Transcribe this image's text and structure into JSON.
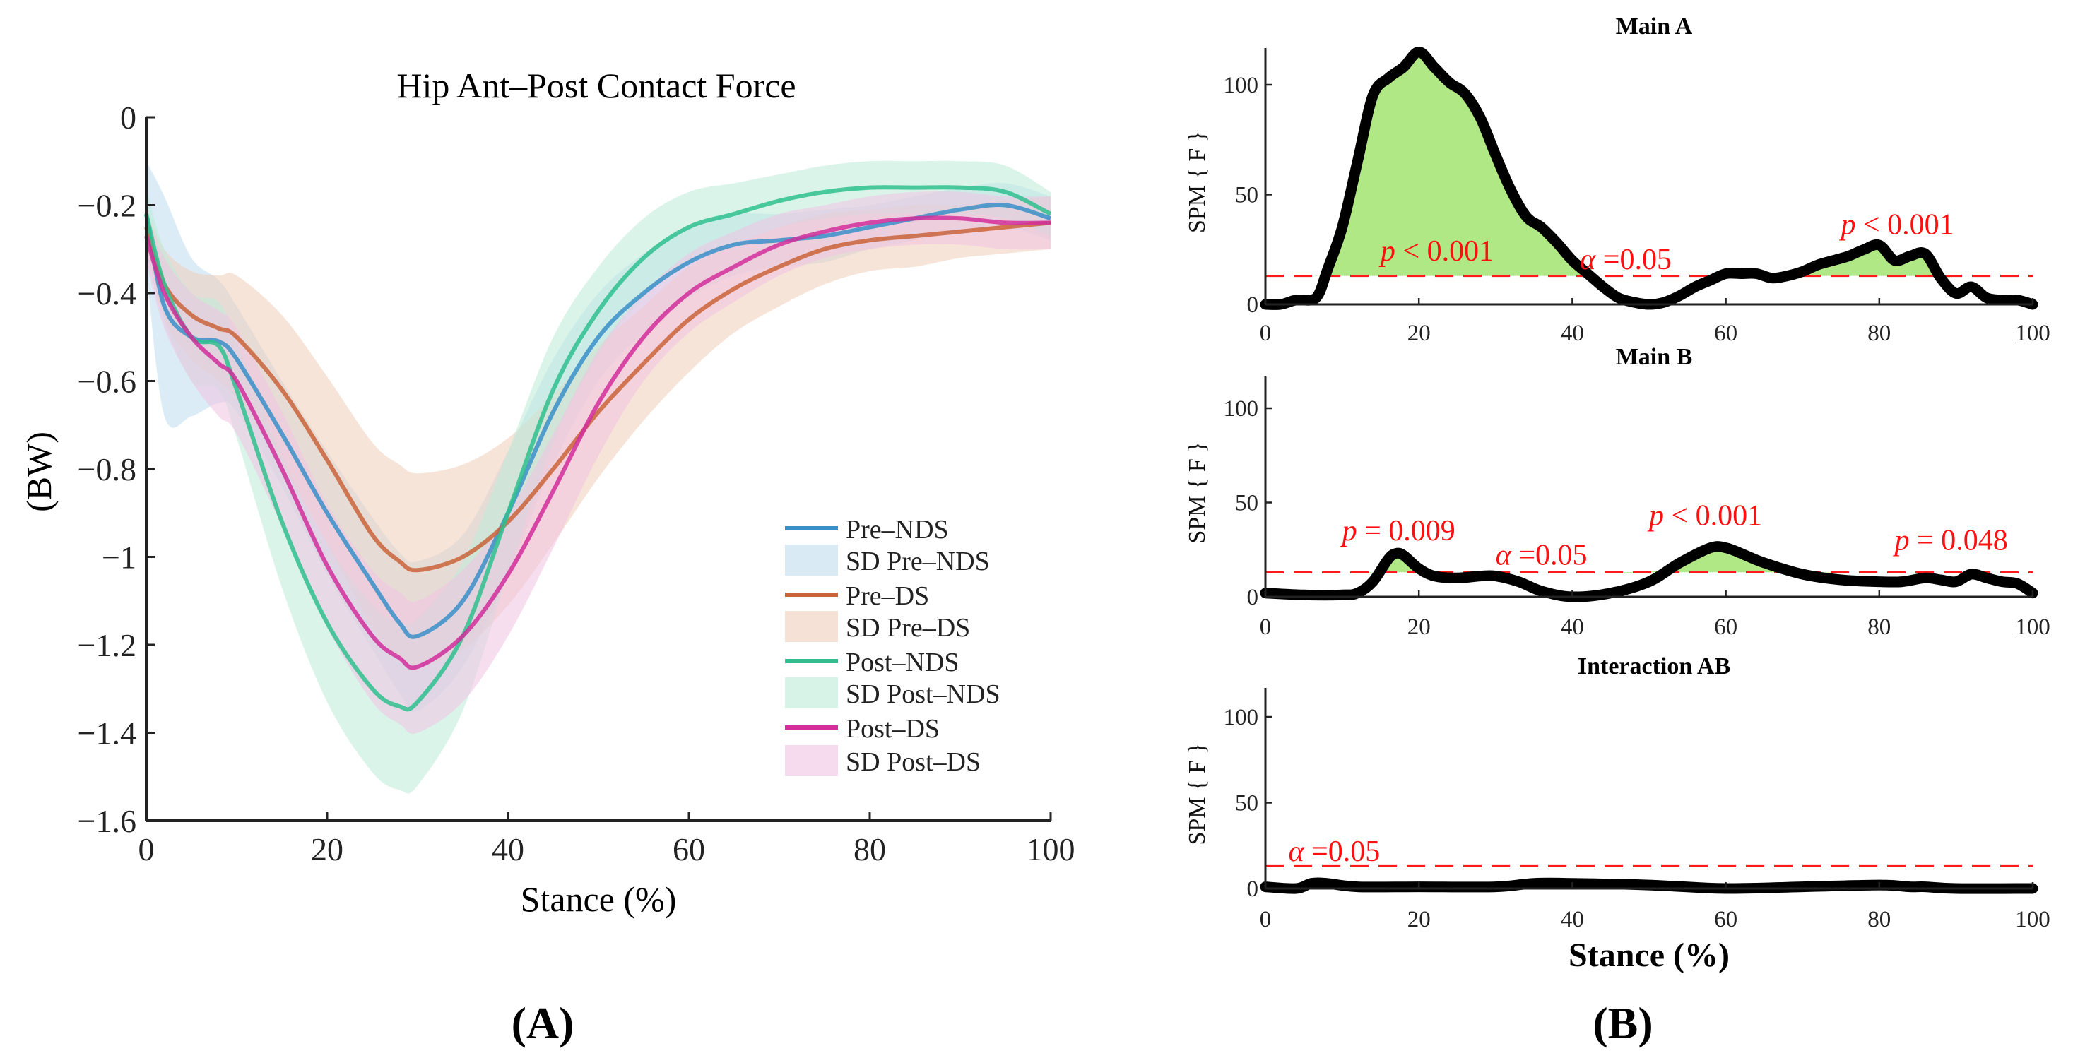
{
  "chart_data": [
    {
      "type": "line",
      "panel": "(A)",
      "title": "Hip Ant–Post Contact Force",
      "xlabel": "Stance (%)",
      "ylabel": "(BW)",
      "xlim": [
        0,
        100
      ],
      "ylim": [
        -1.6,
        0
      ],
      "xticks": [
        0,
        20,
        40,
        60,
        80,
        100
      ],
      "xtick_labels": [
        "0",
        "20",
        "40",
        "60",
        "80",
        "100"
      ],
      "yticks": [
        0,
        -0.2,
        -0.4,
        -0.6,
        -0.8,
        -1,
        -1.2,
        -1.4,
        -1.6
      ],
      "ytick_labels": [
        "0",
        "−0.2",
        "−0.4",
        "−0.6",
        "−0.8",
        "−1",
        "−1.2",
        "−1.4",
        "−1.6"
      ],
      "legend_position": "bottom-right",
      "x": [
        0,
        2,
        5,
        8,
        10,
        15,
        20,
        25,
        28,
        30,
        35,
        40,
        45,
        50,
        55,
        60,
        65,
        70,
        75,
        80,
        85,
        90,
        95,
        100
      ],
      "series": [
        {
          "name": "Pre–NDS",
          "sd_name": "SD Pre–NDS",
          "color": "#3a8fc8",
          "sd_color": "#bfdcef",
          "values": [
            -0.22,
            -0.43,
            -0.5,
            -0.51,
            -0.55,
            -0.72,
            -0.9,
            -1.06,
            -1.15,
            -1.18,
            -1.1,
            -0.9,
            -0.67,
            -0.5,
            -0.4,
            -0.33,
            -0.29,
            -0.28,
            -0.27,
            -0.25,
            -0.23,
            -0.21,
            -0.2,
            -0.23
          ],
          "sd": [
            0.12,
            0.25,
            0.18,
            0.14,
            0.12,
            0.12,
            0.14,
            0.15,
            0.16,
            0.17,
            0.15,
            0.14,
            0.12,
            0.1,
            0.09,
            0.08,
            0.07,
            0.06,
            0.06,
            0.05,
            0.05,
            0.05,
            0.05,
            0.05
          ]
        },
        {
          "name": "Pre–DS",
          "sd_name": "SD Pre–DS",
          "color": "#c9643a",
          "sd_color": "#efcdb9",
          "values": [
            -0.25,
            -0.38,
            -0.45,
            -0.48,
            -0.5,
            -0.62,
            -0.78,
            -0.95,
            -1.01,
            -1.03,
            -1.0,
            -0.92,
            -0.8,
            -0.67,
            -0.56,
            -0.46,
            -0.39,
            -0.34,
            -0.3,
            -0.28,
            -0.27,
            -0.26,
            -0.25,
            -0.24
          ],
          "sd": [
            0.05,
            0.08,
            0.1,
            0.12,
            0.14,
            0.17,
            0.19,
            0.21,
            0.22,
            0.22,
            0.21,
            0.19,
            0.17,
            0.15,
            0.13,
            0.12,
            0.1,
            0.09,
            0.08,
            0.07,
            0.07,
            0.06,
            0.06,
            0.06
          ]
        },
        {
          "name": "Post–NDS",
          "sd_name": "SD Post–NDS",
          "color": "#2fbf8e",
          "sd_color": "#bdebd9",
          "values": [
            -0.22,
            -0.38,
            -0.5,
            -0.52,
            -0.62,
            -0.92,
            -1.15,
            -1.3,
            -1.34,
            -1.33,
            -1.18,
            -0.9,
            -0.62,
            -0.44,
            -0.32,
            -0.25,
            -0.22,
            -0.19,
            -0.17,
            -0.16,
            -0.16,
            -0.16,
            -0.17,
            -0.22
          ],
          "sd": [
            0.06,
            0.08,
            0.1,
            0.1,
            0.11,
            0.15,
            0.18,
            0.19,
            0.19,
            0.19,
            0.17,
            0.14,
            0.12,
            0.1,
            0.09,
            0.08,
            0.07,
            0.06,
            0.06,
            0.06,
            0.06,
            0.06,
            0.06,
            0.05
          ]
        },
        {
          "name": "Post–DS",
          "sd_name": "SD Post–DS",
          "color": "#d12e9b",
          "sd_color": "#f0c3e2",
          "values": [
            -0.27,
            -0.4,
            -0.5,
            -0.56,
            -0.6,
            -0.8,
            -1.02,
            -1.18,
            -1.23,
            -1.25,
            -1.18,
            -1.04,
            -0.85,
            -0.65,
            -0.5,
            -0.4,
            -0.34,
            -0.29,
            -0.26,
            -0.24,
            -0.23,
            -0.23,
            -0.24,
            -0.24
          ],
          "sd": [
            0.06,
            0.08,
            0.1,
            0.12,
            0.12,
            0.13,
            0.14,
            0.15,
            0.15,
            0.15,
            0.15,
            0.14,
            0.13,
            0.12,
            0.1,
            0.09,
            0.08,
            0.07,
            0.06,
            0.06,
            0.06,
            0.06,
            0.06,
            0.06
          ]
        }
      ]
    },
    {
      "type": "line",
      "panel": "(B)",
      "xlabel": "Stance (%)",
      "ylabel": "SPM { F }",
      "xlim": [
        0,
        100
      ],
      "ylim": [
        0,
        117
      ],
      "threshold": 13,
      "xticks": [
        0,
        20,
        40,
        60,
        80,
        100
      ],
      "xtick_labels": [
        "0",
        "20",
        "40",
        "60",
        "80",
        "100"
      ],
      "yticks": [
        0,
        50,
        100
      ],
      "ytick_labels": [
        "0",
        "50",
        "100"
      ],
      "subplots": [
        {
          "title": "Main A",
          "x": [
            0,
            2,
            4,
            6,
            7,
            8,
            10,
            12,
            14,
            16,
            18,
            20,
            22,
            24,
            26,
            28,
            30,
            32,
            34,
            36,
            38,
            40,
            42,
            44,
            46,
            48,
            50,
            52,
            54,
            56,
            58,
            60,
            62,
            64,
            66,
            68,
            70,
            72,
            74,
            76,
            78,
            80,
            82,
            84,
            86,
            88,
            90,
            92,
            94,
            96,
            98,
            100
          ],
          "values": [
            0,
            0,
            2,
            2,
            5,
            15,
            35,
            65,
            95,
            103,
            108,
            115,
            108,
            101,
            96,
            85,
            68,
            52,
            40,
            35,
            28,
            20,
            14,
            8,
            3,
            1,
            0,
            1,
            4,
            8,
            11,
            14,
            14,
            14,
            12,
            13,
            15,
            18,
            20,
            22,
            25,
            27,
            20,
            22,
            23,
            12,
            5,
            8,
            3,
            2,
            2,
            0
          ],
          "annotations": [
            {
              "text": "p < 0.001",
              "x": 15,
              "y": 20,
              "kind": "p"
            },
            {
              "text": "α =0.05",
              "x": 41,
              "y": 16,
              "kind": "alpha"
            },
            {
              "text": "p < 0.001",
              "x": 75,
              "y": 32,
              "kind": "p"
            }
          ]
        },
        {
          "title": "Main B",
          "x": [
            0,
            5,
            10,
            12,
            14,
            16,
            17,
            18,
            20,
            22,
            25,
            28,
            30,
            33,
            36,
            40,
            45,
            50,
            54,
            58,
            60,
            62,
            65,
            70,
            75,
            80,
            83,
            86,
            88,
            90,
            92,
            94,
            96,
            98,
            100
          ],
          "values": [
            2,
            1,
            1,
            2,
            8,
            20,
            23,
            22,
            15,
            11,
            10,
            11,
            11,
            8,
            3,
            0,
            2,
            8,
            18,
            26,
            26,
            23,
            18,
            12,
            9,
            8,
            8,
            10,
            9,
            8,
            12,
            10,
            8,
            7,
            2
          ],
          "annotations": [
            {
              "text": "p = 0.009",
              "x": 10,
              "y": 30,
              "kind": "p"
            },
            {
              "text": "α =0.05",
              "x": 30,
              "y": 17,
              "kind": "alpha"
            },
            {
              "text": "p < 0.001",
              "x": 50,
              "y": 38,
              "kind": "p"
            },
            {
              "text": "p = 0.048",
              "x": 82,
              "y": 25,
              "kind": "p"
            }
          ]
        },
        {
          "title": "Interaction AB",
          "x": [
            0,
            4,
            6,
            8,
            12,
            20,
            30,
            35,
            40,
            50,
            60,
            70,
            80,
            84,
            86,
            90,
            100
          ],
          "values": [
            1,
            0,
            3,
            3,
            1,
            1,
            1,
            3,
            3,
            2,
            0,
            1,
            2,
            1,
            1,
            0,
            0
          ],
          "annotations": [
            {
              "text": "α =0.05",
              "x": 3,
              "y": 16,
              "kind": "alpha"
            }
          ]
        }
      ]
    }
  ]
}
